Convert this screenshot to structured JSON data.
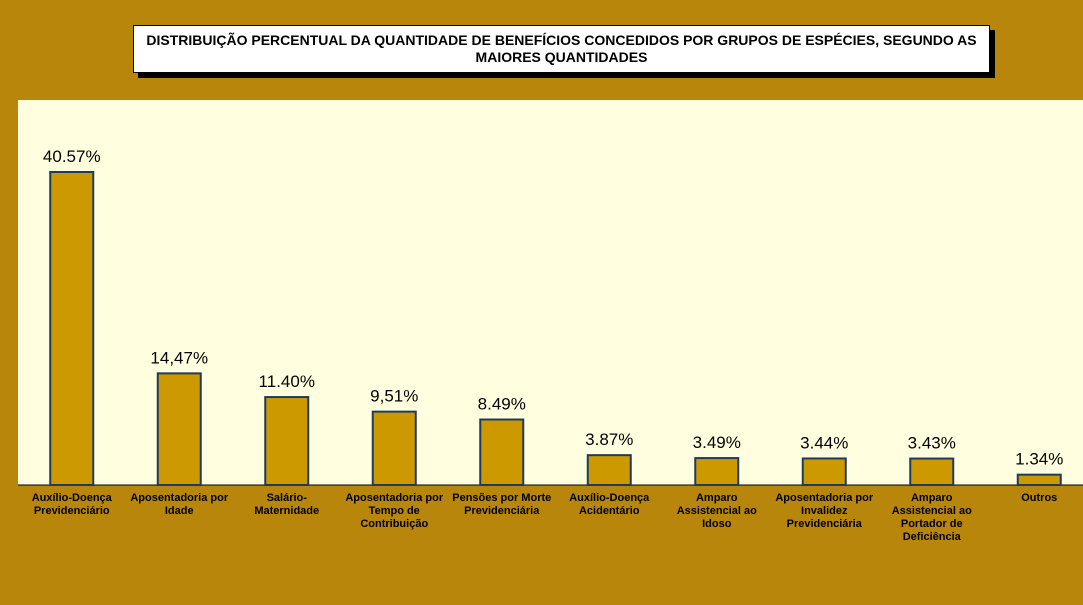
{
  "chart_data": {
    "type": "bar",
    "title": "DISTRIBUIÇÃO PERCENTUAL DA QUANTIDADE DE BENEFÍCIOS CONCEDIDOS POR GRUPOS DE ESPÉCIES, SEGUNDO AS MAIORES QUANTIDADES",
    "categories": [
      "Auxílio-Doença Previdenciário",
      "Aposentadoria por Idade",
      "Salário-Maternidade",
      "Aposentadoria por Tempo de Contribuição",
      "Pensões por Morte Previdenciária",
      "Auxílio-Doença Acidentário",
      "Amparo Assistencial ao Idoso",
      "Aposentadoria por Invalidez Previdenciária",
      "Amparo Assistencial ao Portador de Deficiência",
      "Outros"
    ],
    "values": [
      40.57,
      14.47,
      11.4,
      9.51,
      8.49,
      3.87,
      3.49,
      3.44,
      3.43,
      1.34
    ],
    "value_labels": [
      "40.57%",
      "14,47%",
      "11.40%",
      "9,51%",
      "8.49%",
      "3.87%",
      "3.49%",
      "3.44%",
      "3.43%",
      "1.34%"
    ],
    "color": "#cc9900"
  }
}
